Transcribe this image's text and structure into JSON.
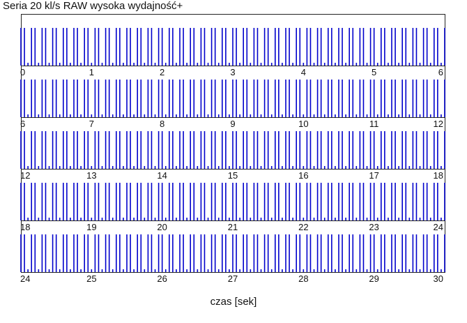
{
  "chart_data": {
    "type": "bar",
    "title": "Seria 20 kl/s RAW wysoka wydajność+",
    "xlabel": "czas [sek]",
    "ylabel": "",
    "legend": "none",
    "grid": false,
    "rows": [
      {
        "xlim": [
          0,
          6
        ],
        "tick_labels": [
          "0",
          "1",
          "2",
          "3",
          "4",
          "5",
          "6"
        ]
      },
      {
        "xlim": [
          6,
          12
        ],
        "tick_labels": [
          "6",
          "7",
          "8",
          "9",
          "10",
          "11",
          "12"
        ]
      },
      {
        "xlim": [
          12,
          18
        ],
        "tick_labels": [
          "12",
          "13",
          "14",
          "15",
          "16",
          "17",
          "18"
        ]
      },
      {
        "xlim": [
          18,
          24
        ],
        "tick_labels": [
          "18",
          "19",
          "20",
          "21",
          "22",
          "23",
          "24"
        ]
      },
      {
        "xlim": [
          24,
          30
        ],
        "tick_labels": [
          "24",
          "25",
          "26",
          "27",
          "28",
          "29",
          "30"
        ]
      }
    ],
    "series": [
      {
        "color": "#0000cc",
        "frames_per_second": 20,
        "start": 0.0,
        "end": 30.0,
        "missing_every": 3
      }
    ]
  }
}
